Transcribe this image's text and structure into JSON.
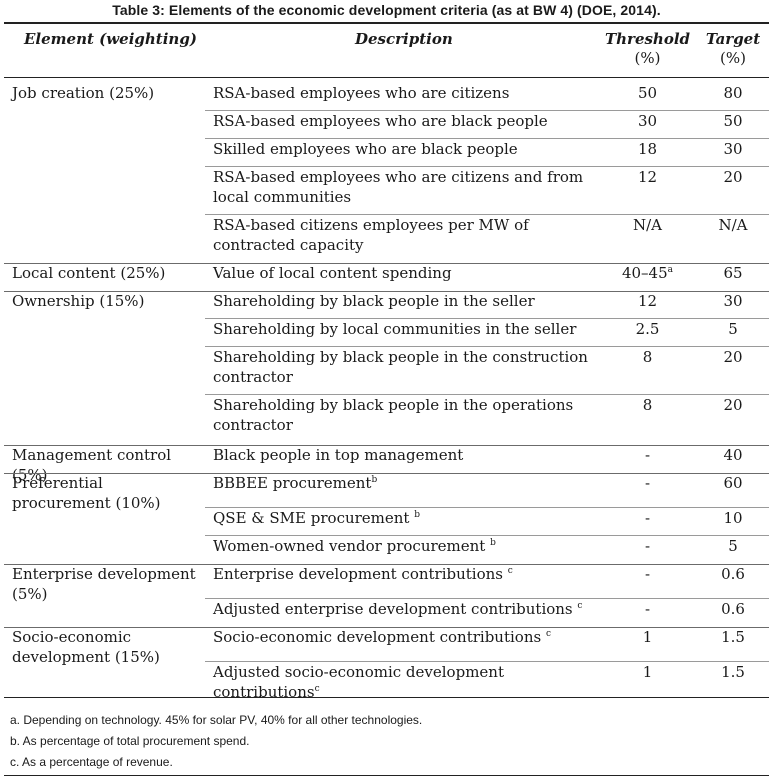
{
  "caption": "Table 3: Elements of the economic development criteria (as at BW 4) (DOE, 2014).",
  "headers": {
    "element": "Element (weighting)",
    "description": "Description",
    "threshold": "Threshold",
    "threshold_unit": "(%)",
    "target": "Target",
    "target_unit": "(%)"
  },
  "rows": [
    {
      "element": "Job creation (25%)",
      "description": "RSA-based employees who are citizens",
      "sup": "",
      "threshold": "50",
      "threshold_sup": "",
      "target": "80"
    },
    {
      "element": "",
      "description": "RSA-based employees who are black people",
      "sup": "",
      "threshold": "30",
      "threshold_sup": "",
      "target": "50"
    },
    {
      "element": "",
      "description": "Skilled employees who are black people",
      "sup": "",
      "threshold": "18",
      "threshold_sup": "",
      "target": "30"
    },
    {
      "element": "",
      "description": "RSA-based employees who are citizens and from local communities",
      "sup": "",
      "threshold": "12",
      "threshold_sup": "",
      "target": "20"
    },
    {
      "element": "",
      "description": "RSA-based citizens employees per MW of contracted capacity",
      "sup": "",
      "threshold": "N/A",
      "threshold_sup": "",
      "target": "N/A"
    },
    {
      "element": "Local content (25%)",
      "description": "Value of local content spending",
      "sup": "",
      "threshold": "40–45",
      "threshold_sup": "a",
      "target": "65"
    },
    {
      "element": "Ownership (15%)",
      "description": "Shareholding by black people in the seller",
      "sup": "",
      "threshold": "12",
      "threshold_sup": "",
      "target": "30"
    },
    {
      "element": "",
      "description": "Shareholding by local communities in the seller",
      "sup": "",
      "threshold": "2.5",
      "threshold_sup": "",
      "target": "5"
    },
    {
      "element": "",
      "description": "Shareholding by black people in the construction contractor",
      "sup": "",
      "threshold": "8",
      "threshold_sup": "",
      "target": "20"
    },
    {
      "element": "",
      "description": "Shareholding by black people in the operations contractor",
      "sup": "",
      "threshold": "8",
      "threshold_sup": "",
      "target": "20"
    },
    {
      "element": "Management control (5%)",
      "description": "Black people in top management",
      "sup": "",
      "threshold": "-",
      "threshold_sup": "",
      "target": "40"
    },
    {
      "element": "Preferential procurement (10%)",
      "description": "BBBEE procurement",
      "sup": "b",
      "threshold": "-",
      "threshold_sup": "",
      "target": "60"
    },
    {
      "element": "",
      "description": "QSE & SME procurement ",
      "sup": "b",
      "threshold": "-",
      "threshold_sup": "",
      "target": "10"
    },
    {
      "element": "",
      "description": "Women-owned vendor procurement ",
      "sup": "b",
      "threshold": "-",
      "threshold_sup": "",
      "target": "5"
    },
    {
      "element": "Enterprise development (5%)",
      "description": "Enterprise development contributions ",
      "sup": "c",
      "threshold": "-",
      "threshold_sup": "",
      "target": "0.6"
    },
    {
      "element": "",
      "description": "Adjusted enterprise development contributions ",
      "sup": "c",
      "threshold": "-",
      "threshold_sup": "",
      "target": "0.6"
    },
    {
      "element": "Socio-economic development (15%)",
      "description": "Socio-economic development contributions ",
      "sup": "c",
      "threshold": "1",
      "threshold_sup": "",
      "target": "1.5"
    },
    {
      "element": "",
      "description": "Adjusted socio-economic development contributions",
      "sup": "c",
      "threshold": "1",
      "threshold_sup": "",
      "target": "1.5"
    }
  ],
  "footnotes": [
    "a. Depending on technology. 45% for solar PV, 40% for all other technologies.",
    "b. As percentage of total procurement spend.",
    "c. As a percentage of revenue."
  ]
}
